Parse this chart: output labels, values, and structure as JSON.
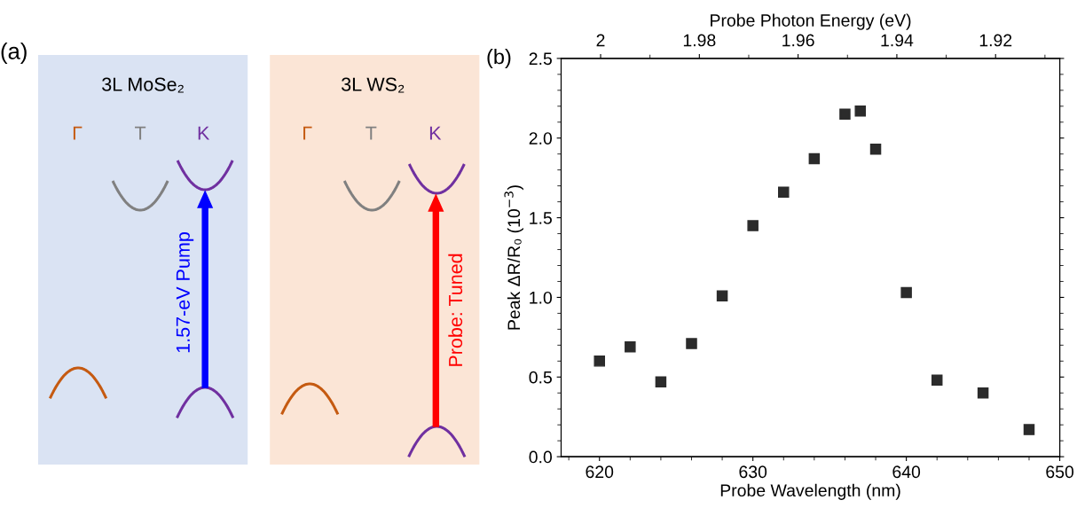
{
  "chart_data": [
    {
      "type": "other",
      "annotations": [
        "(a)",
        "3L MoSe₂",
        "Γ",
        "T",
        "K",
        "1.57-eV Pump",
        "3L WS₂",
        "Γ",
        "T",
        "K",
        "Probe: Tuned"
      ]
    },
    {
      "type": "scatter",
      "annotations": [
        "(b)"
      ],
      "xlabel": "Probe Wavelength (nm)",
      "ylabel": "Peak ΔR/R₀ (10$^{−3}$)",
      "x2label": "Probe Photon Energy (eV)",
      "xlim": [
        617.5,
        650
      ],
      "xticks": [
        620,
        630,
        640,
        650
      ],
      "ylim": [
        0,
        2.5
      ],
      "yticks": [
        {
          "value": 0,
          "label": "0.0"
        },
        0.5,
        {
          "value": 1,
          "label": "1.0"
        },
        1.5,
        {
          "value": 2,
          "label": "2.0"
        },
        2.5
      ],
      "x2lim": [
        2.008,
        1.907
      ],
      "x2ticks": [
        2,
        1.98,
        1.96,
        1.94,
        1.92
      ],
      "marker": "square",
      "grid": false,
      "legend": false,
      "series": [
        {
          "color": "#2b2b2b",
          "x": [
            620,
            622,
            624,
            626,
            628,
            630,
            632,
            634,
            636,
            637,
            638,
            640,
            642,
            645,
            648
          ],
          "values": [
            0.6,
            0.69,
            0.47,
            0.71,
            1.01,
            1.45,
            1.66,
            1.87,
            2.15,
            2.17,
            1.93,
            1.03,
            0.48,
            0.4,
            0.17
          ]
        }
      ]
    }
  ]
}
